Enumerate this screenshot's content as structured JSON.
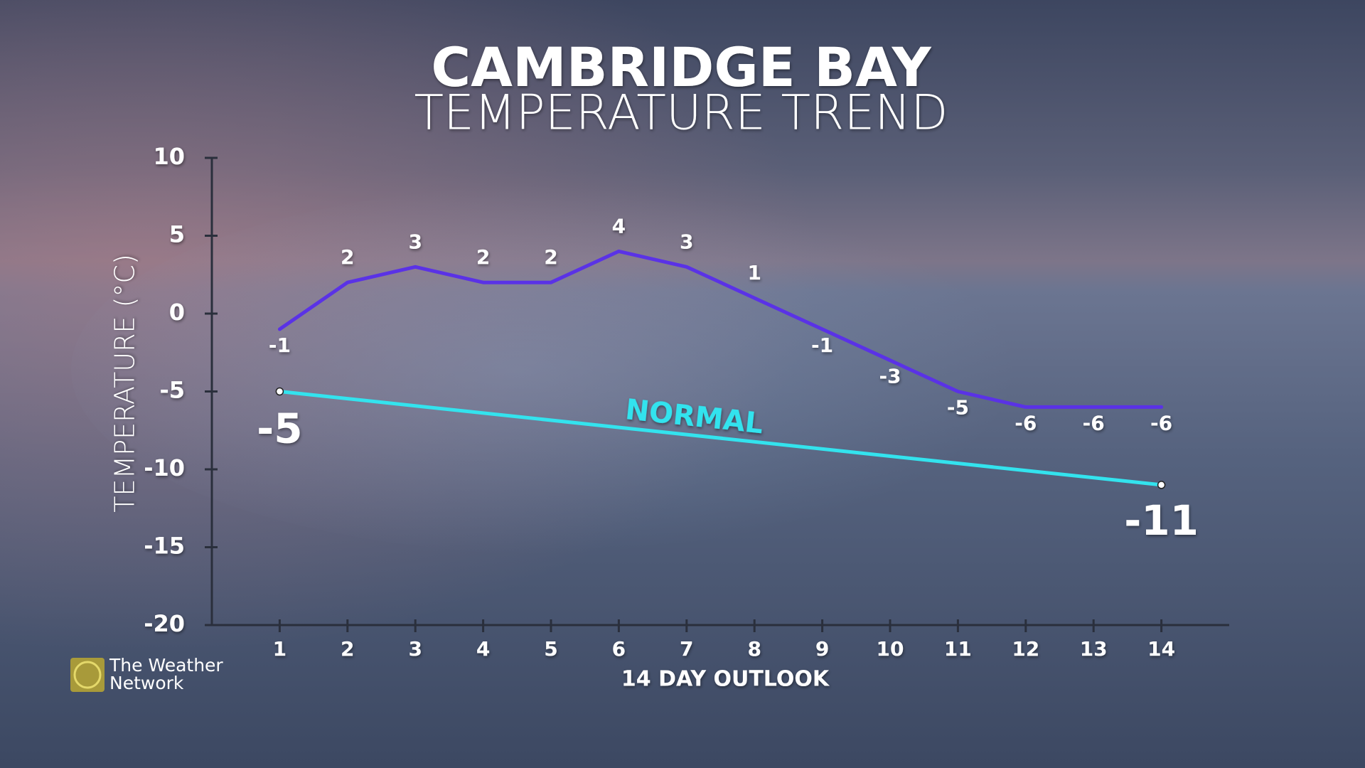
{
  "chart_data": {
    "type": "line",
    "title": "CAMBRIDGE BAY",
    "subtitle": "TEMPERATURE TREND",
    "y_label": "TEMPERATURE (°C)",
    "x_label": "14 DAY OUTLOOK",
    "x": [
      1,
      2,
      3,
      4,
      5,
      6,
      7,
      8,
      9,
      10,
      11,
      12,
      13,
      14
    ],
    "xlim": [
      0,
      15
    ],
    "xticks": [
      1,
      2,
      3,
      4,
      5,
      6,
      7,
      8,
      9,
      10,
      11,
      12,
      13,
      14
    ],
    "ylim": [
      -20,
      10
    ],
    "yticks": [
      -20,
      -15,
      -10,
      -5,
      0,
      5,
      10
    ],
    "series": [
      {
        "color": "#5a32e6",
        "values": [
          -1,
          2,
          3,
          2,
          2,
          4,
          3,
          1,
          -1,
          -3,
          -5,
          -6,
          -6,
          -6
        ]
      },
      {
        "name": "NORMAL",
        "color": "#33e3ee",
        "x": [
          1,
          14
        ],
        "values": [
          -5,
          -11
        ]
      }
    ],
    "logo": [
      "The Weather",
      "Network"
    ]
  }
}
